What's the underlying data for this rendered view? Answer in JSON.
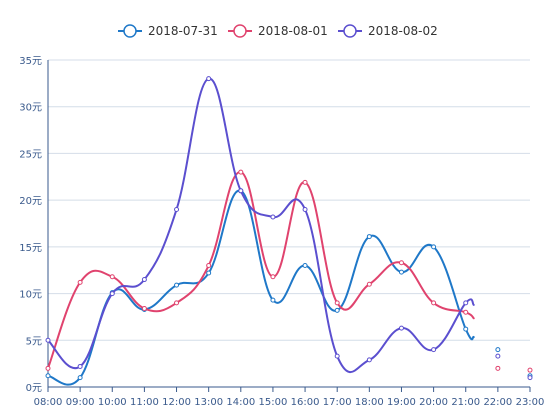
{
  "chart_data": {
    "type": "line",
    "title": "",
    "xlabel": "",
    "ylabel": "",
    "ylim": [
      0,
      35
    ],
    "y_ticks": [
      0,
      5,
      10,
      15,
      20,
      25,
      30,
      35
    ],
    "y_unit": "元",
    "categories": [
      "08:00",
      "09:00",
      "10:00",
      "11:00",
      "12:00",
      "13:00",
      "14:00",
      "15:00",
      "16:00",
      "17:00",
      "18:00",
      "19:00",
      "20:00",
      "21:00",
      "22:00",
      "23:00"
    ],
    "legend_position": "top-center",
    "grid": true,
    "series": [
      {
        "name": "2018-07-31",
        "color": "#1f78c8",
        "values": [
          1.2,
          1.0,
          10.1,
          8.3,
          10.9,
          12.2,
          21.0,
          9.3,
          13.0,
          8.2,
          16.1,
          12.3,
          15.0,
          6.2,
          4.0,
          1.2
        ],
        "line_end_index": 13
      },
      {
        "name": "2018-08-01",
        "color": "#e0436e",
        "values": [
          2.0,
          11.2,
          11.8,
          8.4,
          9.0,
          13.0,
          23.0,
          11.8,
          21.9,
          9.0,
          11.0,
          13.3,
          9.0,
          8.0,
          2.0,
          1.8
        ],
        "line_end_index": 13
      },
      {
        "name": "2018-08-02",
        "color": "#5b4fcf",
        "values": [
          5.0,
          2.2,
          10.0,
          11.5,
          19.0,
          33.0,
          21.0,
          18.2,
          19.0,
          3.3,
          2.9,
          6.3,
          4.0,
          9.0,
          3.3,
          1.0
        ],
        "line_end_index": 13
      }
    ]
  }
}
